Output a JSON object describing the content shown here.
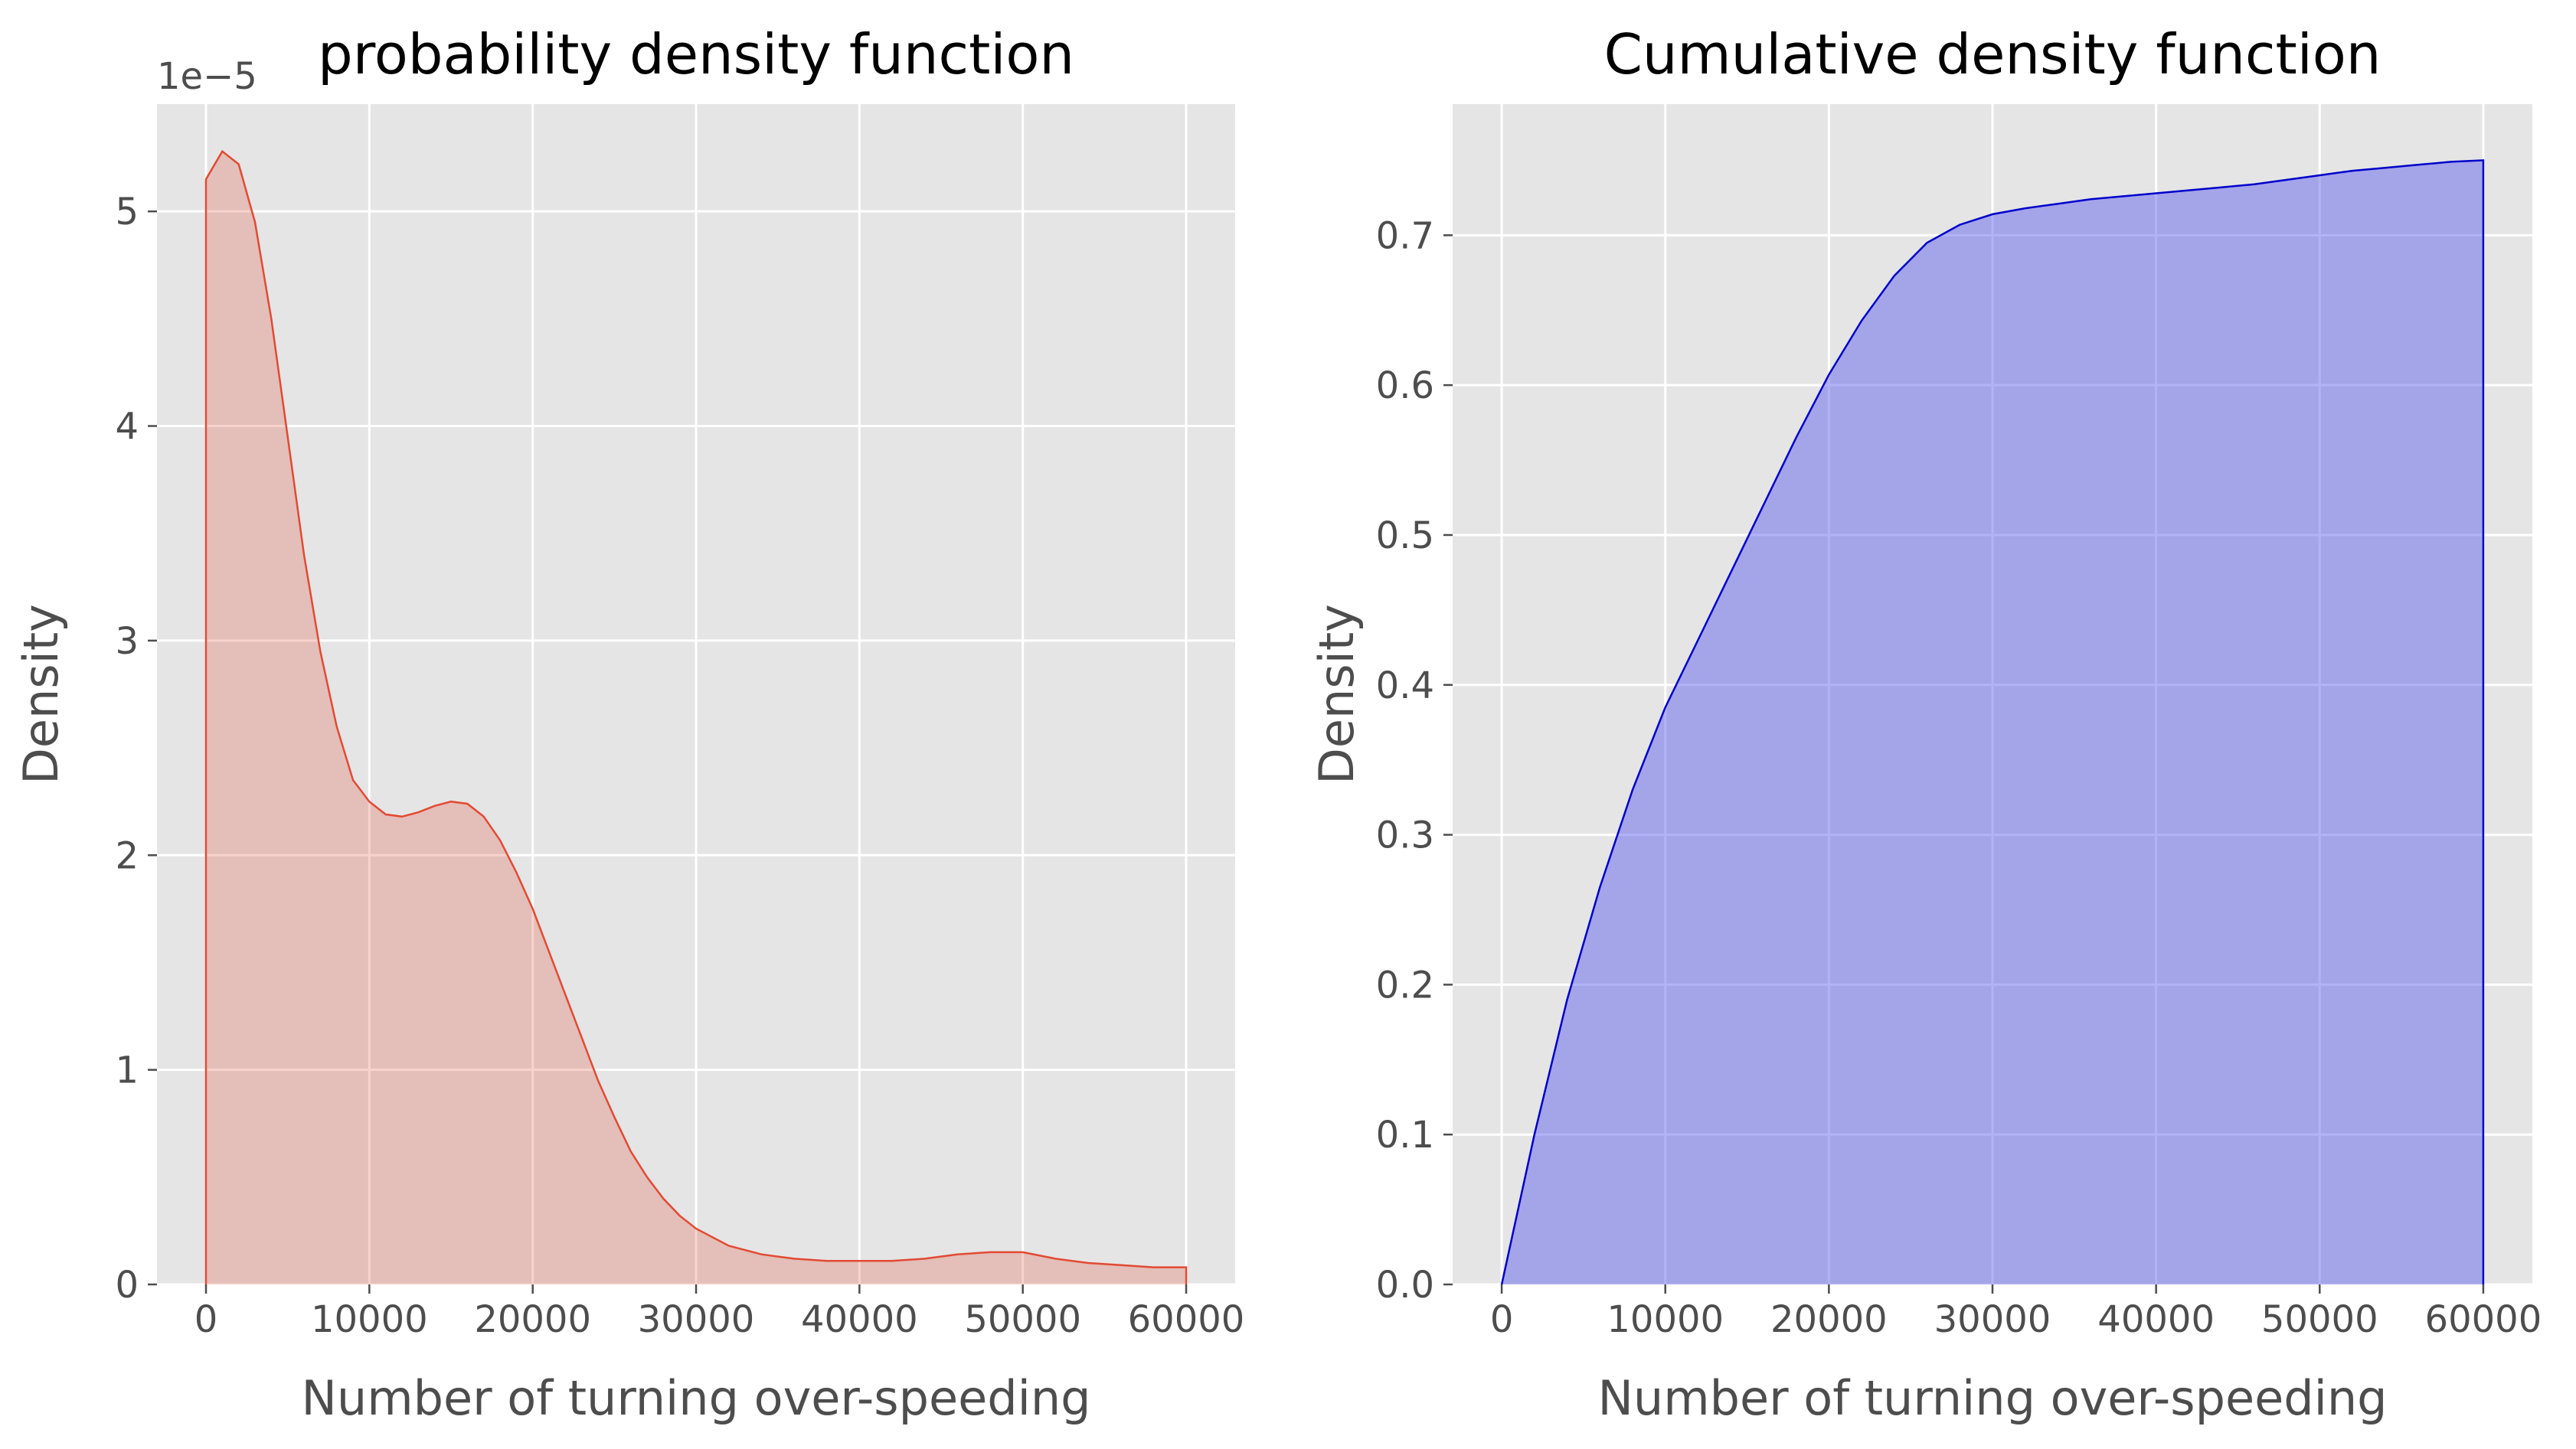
{
  "chart_data": [
    {
      "type": "area",
      "title": "probability density function",
      "xlabel": "Number of turning over-speeding",
      "ylabel": "Density",
      "y_offset_text": "1e−5",
      "xlim": [
        -3000,
        63000
      ],
      "ylim": [
        0,
        5.5
      ],
      "xticks": [
        0,
        10000,
        20000,
        30000,
        40000,
        50000,
        60000
      ],
      "xtick_labels": [
        "0",
        "10000",
        "20000",
        "30000",
        "40000",
        "50000",
        "60000"
      ],
      "yticks": [
        0,
        1,
        2,
        3,
        4,
        5
      ],
      "ytick_labels": [
        "0",
        "1",
        "2",
        "3",
        "4",
        "5"
      ],
      "grid": true,
      "colors": {
        "line": "#e24a33",
        "fill": "#e24a33"
      },
      "series": [
        {
          "x": [
            0,
            1000,
            2000,
            3000,
            4000,
            5000,
            6000,
            7000,
            8000,
            9000,
            10000,
            11000,
            12000,
            13000,
            14000,
            15000,
            16000,
            17000,
            18000,
            19000,
            20000,
            21000,
            22000,
            23000,
            24000,
            25000,
            26000,
            27000,
            28000,
            29000,
            30000,
            32000,
            34000,
            36000,
            38000,
            40000,
            42000,
            44000,
            46000,
            48000,
            50000,
            52000,
            54000,
            56000,
            58000,
            60000
          ],
          "values": [
            5.15,
            5.28,
            5.22,
            4.95,
            4.5,
            3.95,
            3.4,
            2.95,
            2.6,
            2.35,
            2.25,
            2.19,
            2.18,
            2.2,
            2.23,
            2.25,
            2.24,
            2.18,
            2.07,
            1.92,
            1.75,
            1.55,
            1.35,
            1.15,
            0.95,
            0.78,
            0.62,
            0.5,
            0.4,
            0.32,
            0.26,
            0.18,
            0.14,
            0.12,
            0.11,
            0.11,
            0.11,
            0.12,
            0.14,
            0.15,
            0.15,
            0.12,
            0.1,
            0.09,
            0.08,
            0.08
          ]
        }
      ]
    },
    {
      "type": "area",
      "title": "Cumulative density function",
      "xlabel": "Number of turning over-speeding",
      "ylabel": "Density",
      "xlim": [
        -3000,
        63000
      ],
      "ylim": [
        0,
        0.7875
      ],
      "xticks": [
        0,
        10000,
        20000,
        30000,
        40000,
        50000,
        60000
      ],
      "xtick_labels": [
        "0",
        "10000",
        "20000",
        "30000",
        "40000",
        "50000",
        "60000"
      ],
      "yticks": [
        0,
        0.1,
        0.2,
        0.3,
        0.4,
        0.5,
        0.6,
        0.7
      ],
      "ytick_labels": [
        "0.0",
        "0.1",
        "0.2",
        "0.3",
        "0.4",
        "0.5",
        "0.6",
        "0.7"
      ],
      "grid": true,
      "colors": {
        "line": "#0000cc",
        "fill": "#5555ee"
      },
      "series": [
        {
          "x": [
            0,
            2000,
            4000,
            6000,
            8000,
            10000,
            12000,
            14000,
            16000,
            18000,
            20000,
            22000,
            24000,
            26000,
            28000,
            30000,
            32000,
            34000,
            36000,
            38000,
            40000,
            42000,
            44000,
            46000,
            48000,
            50000,
            52000,
            54000,
            56000,
            58000,
            60000
          ],
          "values": [
            0.0,
            0.1,
            0.19,
            0.265,
            0.33,
            0.385,
            0.43,
            0.475,
            0.52,
            0.565,
            0.607,
            0.643,
            0.673,
            0.695,
            0.707,
            0.714,
            0.718,
            0.721,
            0.724,
            0.726,
            0.728,
            0.73,
            0.732,
            0.734,
            0.737,
            0.74,
            0.743,
            0.745,
            0.747,
            0.749,
            0.75
          ]
        }
      ]
    }
  ]
}
